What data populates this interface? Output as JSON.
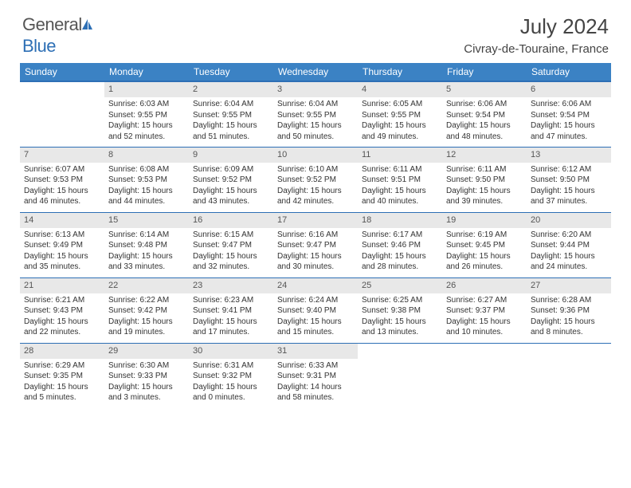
{
  "brand": {
    "part1": "General",
    "part2": "Blue"
  },
  "title": "July 2024",
  "location": "Civray-de-Touraine, France",
  "colors": {
    "header_bg": "#3b82c4",
    "border": "#2d6fb5",
    "daynum_bg": "#e8e8e8",
    "text": "#333333"
  },
  "day_labels": [
    "Sunday",
    "Monday",
    "Tuesday",
    "Wednesday",
    "Thursday",
    "Friday",
    "Saturday"
  ],
  "weeks": [
    [
      null,
      {
        "n": "1",
        "sr": "6:03 AM",
        "ss": "9:55 PM",
        "dl": "15 hours and 52 minutes."
      },
      {
        "n": "2",
        "sr": "6:04 AM",
        "ss": "9:55 PM",
        "dl": "15 hours and 51 minutes."
      },
      {
        "n": "3",
        "sr": "6:04 AM",
        "ss": "9:55 PM",
        "dl": "15 hours and 50 minutes."
      },
      {
        "n": "4",
        "sr": "6:05 AM",
        "ss": "9:55 PM",
        "dl": "15 hours and 49 minutes."
      },
      {
        "n": "5",
        "sr": "6:06 AM",
        "ss": "9:54 PM",
        "dl": "15 hours and 48 minutes."
      },
      {
        "n": "6",
        "sr": "6:06 AM",
        "ss": "9:54 PM",
        "dl": "15 hours and 47 minutes."
      }
    ],
    [
      {
        "n": "7",
        "sr": "6:07 AM",
        "ss": "9:53 PM",
        "dl": "15 hours and 46 minutes."
      },
      {
        "n": "8",
        "sr": "6:08 AM",
        "ss": "9:53 PM",
        "dl": "15 hours and 44 minutes."
      },
      {
        "n": "9",
        "sr": "6:09 AM",
        "ss": "9:52 PM",
        "dl": "15 hours and 43 minutes."
      },
      {
        "n": "10",
        "sr": "6:10 AM",
        "ss": "9:52 PM",
        "dl": "15 hours and 42 minutes."
      },
      {
        "n": "11",
        "sr": "6:11 AM",
        "ss": "9:51 PM",
        "dl": "15 hours and 40 minutes."
      },
      {
        "n": "12",
        "sr": "6:11 AM",
        "ss": "9:50 PM",
        "dl": "15 hours and 39 minutes."
      },
      {
        "n": "13",
        "sr": "6:12 AM",
        "ss": "9:50 PM",
        "dl": "15 hours and 37 minutes."
      }
    ],
    [
      {
        "n": "14",
        "sr": "6:13 AM",
        "ss": "9:49 PM",
        "dl": "15 hours and 35 minutes."
      },
      {
        "n": "15",
        "sr": "6:14 AM",
        "ss": "9:48 PM",
        "dl": "15 hours and 33 minutes."
      },
      {
        "n": "16",
        "sr": "6:15 AM",
        "ss": "9:47 PM",
        "dl": "15 hours and 32 minutes."
      },
      {
        "n": "17",
        "sr": "6:16 AM",
        "ss": "9:47 PM",
        "dl": "15 hours and 30 minutes."
      },
      {
        "n": "18",
        "sr": "6:17 AM",
        "ss": "9:46 PM",
        "dl": "15 hours and 28 minutes."
      },
      {
        "n": "19",
        "sr": "6:19 AM",
        "ss": "9:45 PM",
        "dl": "15 hours and 26 minutes."
      },
      {
        "n": "20",
        "sr": "6:20 AM",
        "ss": "9:44 PM",
        "dl": "15 hours and 24 minutes."
      }
    ],
    [
      {
        "n": "21",
        "sr": "6:21 AM",
        "ss": "9:43 PM",
        "dl": "15 hours and 22 minutes."
      },
      {
        "n": "22",
        "sr": "6:22 AM",
        "ss": "9:42 PM",
        "dl": "15 hours and 19 minutes."
      },
      {
        "n": "23",
        "sr": "6:23 AM",
        "ss": "9:41 PM",
        "dl": "15 hours and 17 minutes."
      },
      {
        "n": "24",
        "sr": "6:24 AM",
        "ss": "9:40 PM",
        "dl": "15 hours and 15 minutes."
      },
      {
        "n": "25",
        "sr": "6:25 AM",
        "ss": "9:38 PM",
        "dl": "15 hours and 13 minutes."
      },
      {
        "n": "26",
        "sr": "6:27 AM",
        "ss": "9:37 PM",
        "dl": "15 hours and 10 minutes."
      },
      {
        "n": "27",
        "sr": "6:28 AM",
        "ss": "9:36 PM",
        "dl": "15 hours and 8 minutes."
      }
    ],
    [
      {
        "n": "28",
        "sr": "6:29 AM",
        "ss": "9:35 PM",
        "dl": "15 hours and 5 minutes."
      },
      {
        "n": "29",
        "sr": "6:30 AM",
        "ss": "9:33 PM",
        "dl": "15 hours and 3 minutes."
      },
      {
        "n": "30",
        "sr": "6:31 AM",
        "ss": "9:32 PM",
        "dl": "15 hours and 0 minutes."
      },
      {
        "n": "31",
        "sr": "6:33 AM",
        "ss": "9:31 PM",
        "dl": "14 hours and 58 minutes."
      },
      null,
      null,
      null
    ]
  ],
  "labels": {
    "sunrise": "Sunrise:",
    "sunset": "Sunset:",
    "daylight": "Daylight:"
  }
}
